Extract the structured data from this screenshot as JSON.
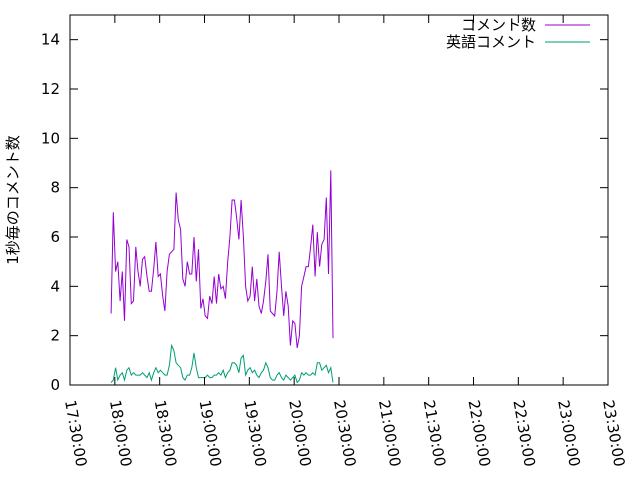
{
  "chart_data": {
    "type": "line",
    "title": "",
    "xlabel": "",
    "ylabel": "1秒毎のコメント数",
    "x_ticks": [
      "17:30:00",
      "18:00:00",
      "18:30:00",
      "19:00:00",
      "19:30:00",
      "20:00:00",
      "20:30:00",
      "21:00:00",
      "21:30:00",
      "22:00:00",
      "22:30:00",
      "23:00:00",
      "23:30:00"
    ],
    "y_ticks": [
      "0",
      "2",
      "4",
      "6",
      "8",
      "10",
      "12",
      "14"
    ],
    "xlim": [
      "17:30:00",
      "23:30:00"
    ],
    "ylim": [
      0,
      15
    ],
    "grid": false,
    "legend_position": "top-right",
    "series": [
      {
        "name": "コメント数",
        "color": "#9400d3",
        "points": [
          [
            "17:57:30",
            2.9
          ],
          [
            "17:59:00",
            7.0
          ],
          [
            "18:00:30",
            4.6
          ],
          [
            "18:02:00",
            5.0
          ],
          [
            "18:03:30",
            3.4
          ],
          [
            "18:05:00",
            4.6
          ],
          [
            "18:06:30",
            2.6
          ],
          [
            "18:08:00",
            5.9
          ],
          [
            "18:09:30",
            5.6
          ],
          [
            "18:11:00",
            3.3
          ],
          [
            "18:12:30",
            3.4
          ],
          [
            "18:14:00",
            5.6
          ],
          [
            "18:15:30",
            4.6
          ],
          [
            "18:17:00",
            4.0
          ],
          [
            "18:18:30",
            5.1
          ],
          [
            "18:20:00",
            5.2
          ],
          [
            "18:21:30",
            4.4
          ],
          [
            "18:23:00",
            3.8
          ],
          [
            "18:24:30",
            3.8
          ],
          [
            "18:26:00",
            4.7
          ],
          [
            "18:27:30",
            5.8
          ],
          [
            "18:29:00",
            4.4
          ],
          [
            "18:30:30",
            4.5
          ],
          [
            "18:32:00",
            3.6
          ],
          [
            "18:33:30",
            3.0
          ],
          [
            "18:35:00",
            4.6
          ],
          [
            "18:36:30",
            5.3
          ],
          [
            "18:38:00",
            5.4
          ],
          [
            "18:39:30",
            5.5
          ],
          [
            "18:41:00",
            7.8
          ],
          [
            "18:42:30",
            6.7
          ],
          [
            "18:44:00",
            6.3
          ],
          [
            "18:45:30",
            4.3
          ],
          [
            "18:47:00",
            4.0
          ],
          [
            "18:48:30",
            5.0
          ],
          [
            "18:50:00",
            4.5
          ],
          [
            "18:51:30",
            4.5
          ],
          [
            "18:53:00",
            6.0
          ],
          [
            "18:54:30",
            4.2
          ],
          [
            "18:56:00",
            5.5
          ],
          [
            "18:57:30",
            3.1
          ],
          [
            "18:59:00",
            3.5
          ],
          [
            "19:00:30",
            2.8
          ],
          [
            "19:02:00",
            2.7
          ],
          [
            "19:03:30",
            3.6
          ],
          [
            "19:05:00",
            3.3
          ],
          [
            "19:06:30",
            4.4
          ],
          [
            "19:08:00",
            3.3
          ],
          [
            "19:09:30",
            4.5
          ],
          [
            "19:11:00",
            3.9
          ],
          [
            "19:12:30",
            4.0
          ],
          [
            "19:14:00",
            3.5
          ],
          [
            "19:15:30",
            5.0
          ],
          [
            "19:17:00",
            6.0
          ],
          [
            "19:18:30",
            7.5
          ],
          [
            "19:20:00",
            7.5
          ],
          [
            "19:21:30",
            6.8
          ],
          [
            "19:23:00",
            5.9
          ],
          [
            "19:24:30",
            7.5
          ],
          [
            "19:26:00",
            6.0
          ],
          [
            "19:27:30",
            4.0
          ],
          [
            "19:29:00",
            3.4
          ],
          [
            "19:30:30",
            3.6
          ],
          [
            "19:32:00",
            4.8
          ],
          [
            "19:33:30",
            3.4
          ],
          [
            "19:35:00",
            4.3
          ],
          [
            "19:36:30",
            3.2
          ],
          [
            "19:38:00",
            2.9
          ],
          [
            "19:39:30",
            3.4
          ],
          [
            "19:41:00",
            4.2
          ],
          [
            "19:42:30",
            5.3
          ],
          [
            "19:44:00",
            3.0
          ],
          [
            "19:45:30",
            2.9
          ],
          [
            "19:47:00",
            2.8
          ],
          [
            "19:48:30",
            3.8
          ],
          [
            "19:50:00",
            5.4
          ],
          [
            "19:51:30",
            4.0
          ],
          [
            "19:53:00",
            2.8
          ],
          [
            "19:54:30",
            3.8
          ],
          [
            "19:56:00",
            3.2
          ],
          [
            "19:57:30",
            1.6
          ],
          [
            "19:59:00",
            2.6
          ],
          [
            "20:00:30",
            2.5
          ],
          [
            "20:02:00",
            1.5
          ],
          [
            "20:03:30",
            2.0
          ],
          [
            "20:05:00",
            4.0
          ],
          [
            "20:06:30",
            4.4
          ],
          [
            "20:08:00",
            4.8
          ],
          [
            "20:09:30",
            4.8
          ],
          [
            "20:11:00",
            5.6
          ],
          [
            "20:12:30",
            6.5
          ],
          [
            "20:14:00",
            4.4
          ],
          [
            "20:15:30",
            6.2
          ],
          [
            "20:17:00",
            4.8
          ],
          [
            "20:18:30",
            5.7
          ],
          [
            "20:20:00",
            5.9
          ],
          [
            "20:21:30",
            7.6
          ],
          [
            "20:23:00",
            4.5
          ],
          [
            "20:24:30",
            8.7
          ],
          [
            "20:26:00",
            1.9
          ]
        ]
      },
      {
        "name": "英語コメント",
        "color": "#009e73",
        "points": [
          [
            "17:57:30",
            0.1
          ],
          [
            "17:59:00",
            0.2
          ],
          [
            "18:00:30",
            0.7
          ],
          [
            "18:02:00",
            0.2
          ],
          [
            "18:03:30",
            0.4
          ],
          [
            "18:05:00",
            0.5
          ],
          [
            "18:06:30",
            0.2
          ],
          [
            "18:08:00",
            0.6
          ],
          [
            "18:09:30",
            0.7
          ],
          [
            "18:11:00",
            0.4
          ],
          [
            "18:12:30",
            0.5
          ],
          [
            "18:14:00",
            0.4
          ],
          [
            "18:15:30",
            0.4
          ],
          [
            "18:17:00",
            0.4
          ],
          [
            "18:18:30",
            0.5
          ],
          [
            "18:20:00",
            0.4
          ],
          [
            "18:21:30",
            0.3
          ],
          [
            "18:23:00",
            0.5
          ],
          [
            "18:24:30",
            0.2
          ],
          [
            "18:26:00",
            0.5
          ],
          [
            "18:27:30",
            0.7
          ],
          [
            "18:29:00",
            0.5
          ],
          [
            "18:30:30",
            0.6
          ],
          [
            "18:32:00",
            0.5
          ],
          [
            "18:33:30",
            0.4
          ],
          [
            "18:35:00",
            0.4
          ],
          [
            "18:36:30",
            0.8
          ],
          [
            "18:38:00",
            1.6
          ],
          [
            "18:39:30",
            1.4
          ],
          [
            "18:41:00",
            0.9
          ],
          [
            "18:42:30",
            0.8
          ],
          [
            "18:44:00",
            0.7
          ],
          [
            "18:45:30",
            0.3
          ],
          [
            "18:47:00",
            0.2
          ],
          [
            "18:48:30",
            0.4
          ],
          [
            "18:50:00",
            0.4
          ],
          [
            "18:51:30",
            0.7
          ],
          [
            "18:53:00",
            1.3
          ],
          [
            "18:54:30",
            0.7
          ],
          [
            "18:56:00",
            0.3
          ],
          [
            "18:57:30",
            0.3
          ],
          [
            "18:59:00",
            0.3
          ],
          [
            "19:00:30",
            0.3
          ],
          [
            "19:02:00",
            0.4
          ],
          [
            "19:03:30",
            0.3
          ],
          [
            "19:05:00",
            0.3
          ],
          [
            "19:06:30",
            0.4
          ],
          [
            "19:08:00",
            0.4
          ],
          [
            "19:09:30",
            0.5
          ],
          [
            "19:11:00",
            0.4
          ],
          [
            "19:12:30",
            0.6
          ],
          [
            "19:14:00",
            0.3
          ],
          [
            "19:15:30",
            0.5
          ],
          [
            "19:17:00",
            0.6
          ],
          [
            "19:18:30",
            0.9
          ],
          [
            "19:20:00",
            0.9
          ],
          [
            "19:21:30",
            0.8
          ],
          [
            "19:23:00",
            0.5
          ],
          [
            "19:24:30",
            1.1
          ],
          [
            "19:26:00",
            1.2
          ],
          [
            "19:27:30",
            0.4
          ],
          [
            "19:29:00",
            0.6
          ],
          [
            "19:30:30",
            0.7
          ],
          [
            "19:32:00",
            0.5
          ],
          [
            "19:33:30",
            0.6
          ],
          [
            "19:35:00",
            0.4
          ],
          [
            "19:36:30",
            0.3
          ],
          [
            "19:38:00",
            0.5
          ],
          [
            "19:39:30",
            0.6
          ],
          [
            "19:41:00",
            0.9
          ],
          [
            "19:42:30",
            0.7
          ],
          [
            "19:44:00",
            0.3
          ],
          [
            "19:45:30",
            0.2
          ],
          [
            "19:47:00",
            0.2
          ],
          [
            "19:48:30",
            0.4
          ],
          [
            "19:50:00",
            0.5
          ],
          [
            "19:51:30",
            0.3
          ],
          [
            "19:53:00",
            0.2
          ],
          [
            "19:54:30",
            0.4
          ],
          [
            "19:56:00",
            0.3
          ],
          [
            "19:57:30",
            0.2
          ],
          [
            "19:59:00",
            0.3
          ],
          [
            "20:00:30",
            0.4
          ],
          [
            "20:02:00",
            0.1
          ],
          [
            "20:03:30",
            0.2
          ],
          [
            "20:05:00",
            0.5
          ],
          [
            "20:06:30",
            0.4
          ],
          [
            "20:08:00",
            0.5
          ],
          [
            "20:09:30",
            0.4
          ],
          [
            "20:11:00",
            0.4
          ],
          [
            "20:12:30",
            0.5
          ],
          [
            "20:14:00",
            0.4
          ],
          [
            "20:15:30",
            0.9
          ],
          [
            "20:17:00",
            0.9
          ],
          [
            "20:18:30",
            0.6
          ],
          [
            "20:20:00",
            0.7
          ],
          [
            "20:21:30",
            0.8
          ],
          [
            "20:23:00",
            0.5
          ],
          [
            "20:24:30",
            0.7
          ],
          [
            "20:26:00",
            0.1
          ]
        ]
      }
    ]
  }
}
